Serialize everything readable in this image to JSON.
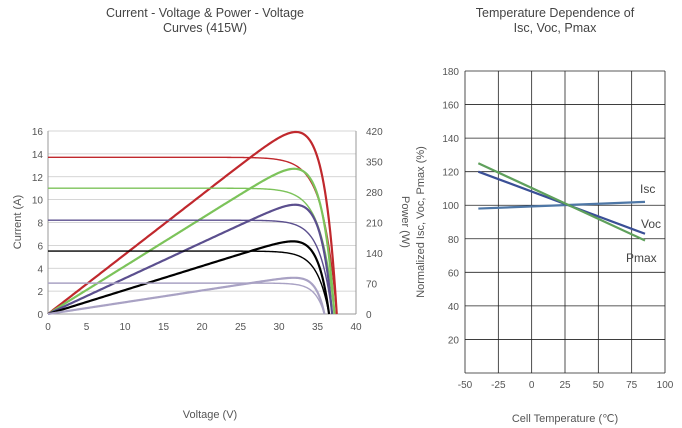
{
  "chart_data": [
    {
      "type": "line",
      "title": [
        "Current - Voltage & Power - Voltage",
        "Curves (415W)"
      ],
      "xlabel": "Voltage (V)",
      "ylabel": "Current (A)",
      "y2label": "Power (W)",
      "xlim": [
        0,
        40
      ],
      "ylim": [
        0,
        16
      ],
      "y2lim": [
        0,
        420
      ],
      "xticks": [
        "0",
        "5",
        "10",
        "15",
        "20",
        "25",
        "30",
        "35",
        "40"
      ],
      "yticks": [
        "0",
        "2",
        "4",
        "6",
        "8",
        "10",
        "12",
        "14",
        "16"
      ],
      "y2ticks": [
        "0",
        "70",
        "140",
        "210",
        "280",
        "350",
        "420"
      ],
      "grid": "horizontal",
      "series": [
        {
          "color": "#c0282d",
          "isc": 13.7,
          "voc": 37.5,
          "pmax_point": [
            31.3,
            415
          ]
        },
        {
          "color": "#7cc35a",
          "isc": 11.0,
          "voc": 37.2,
          "pmax_point": [
            31.3,
            332
          ]
        },
        {
          "color": "#5b4f8e",
          "isc": 8.2,
          "voc": 36.9,
          "pmax_point": [
            31.2,
            249
          ]
        },
        {
          "color": "#000000",
          "isc": 5.5,
          "voc": 36.5,
          "pmax_point": [
            31.1,
            166
          ]
        },
        {
          "color": "#a9a2c4",
          "isc": 2.7,
          "voc": 35.9,
          "pmax_point": [
            30.8,
            82
          ]
        }
      ]
    },
    {
      "type": "line",
      "title": [
        "Temperature Dependence of",
        "Isc, Voc, Pmax"
      ],
      "xlabel": "Cell Temperature (℃)",
      "ylabel": "Normalized Isc, Voc, Pmax (%)",
      "xlim": [
        -50,
        100
      ],
      "ylim": [
        0,
        180
      ],
      "xticks": [
        "-50",
        "-25",
        "0",
        "25",
        "50",
        "75",
        "100"
      ],
      "yticks": [
        "20",
        "40",
        "60",
        "80",
        "100",
        "120",
        "140",
        "160",
        "180"
      ],
      "grid": "both",
      "series": [
        {
          "name": "Isc",
          "color": "#4e77a6",
          "points": [
            [
              -40,
              98
            ],
            [
              85,
              102
            ]
          ]
        },
        {
          "name": "Voc",
          "color": "#3a4f96",
          "points": [
            [
              -40,
              120
            ],
            [
              85,
              83
            ]
          ]
        },
        {
          "name": "Pmax",
          "color": "#5fa05c",
          "points": [
            [
              -40,
              125
            ],
            [
              85,
              79
            ]
          ]
        }
      ]
    }
  ]
}
